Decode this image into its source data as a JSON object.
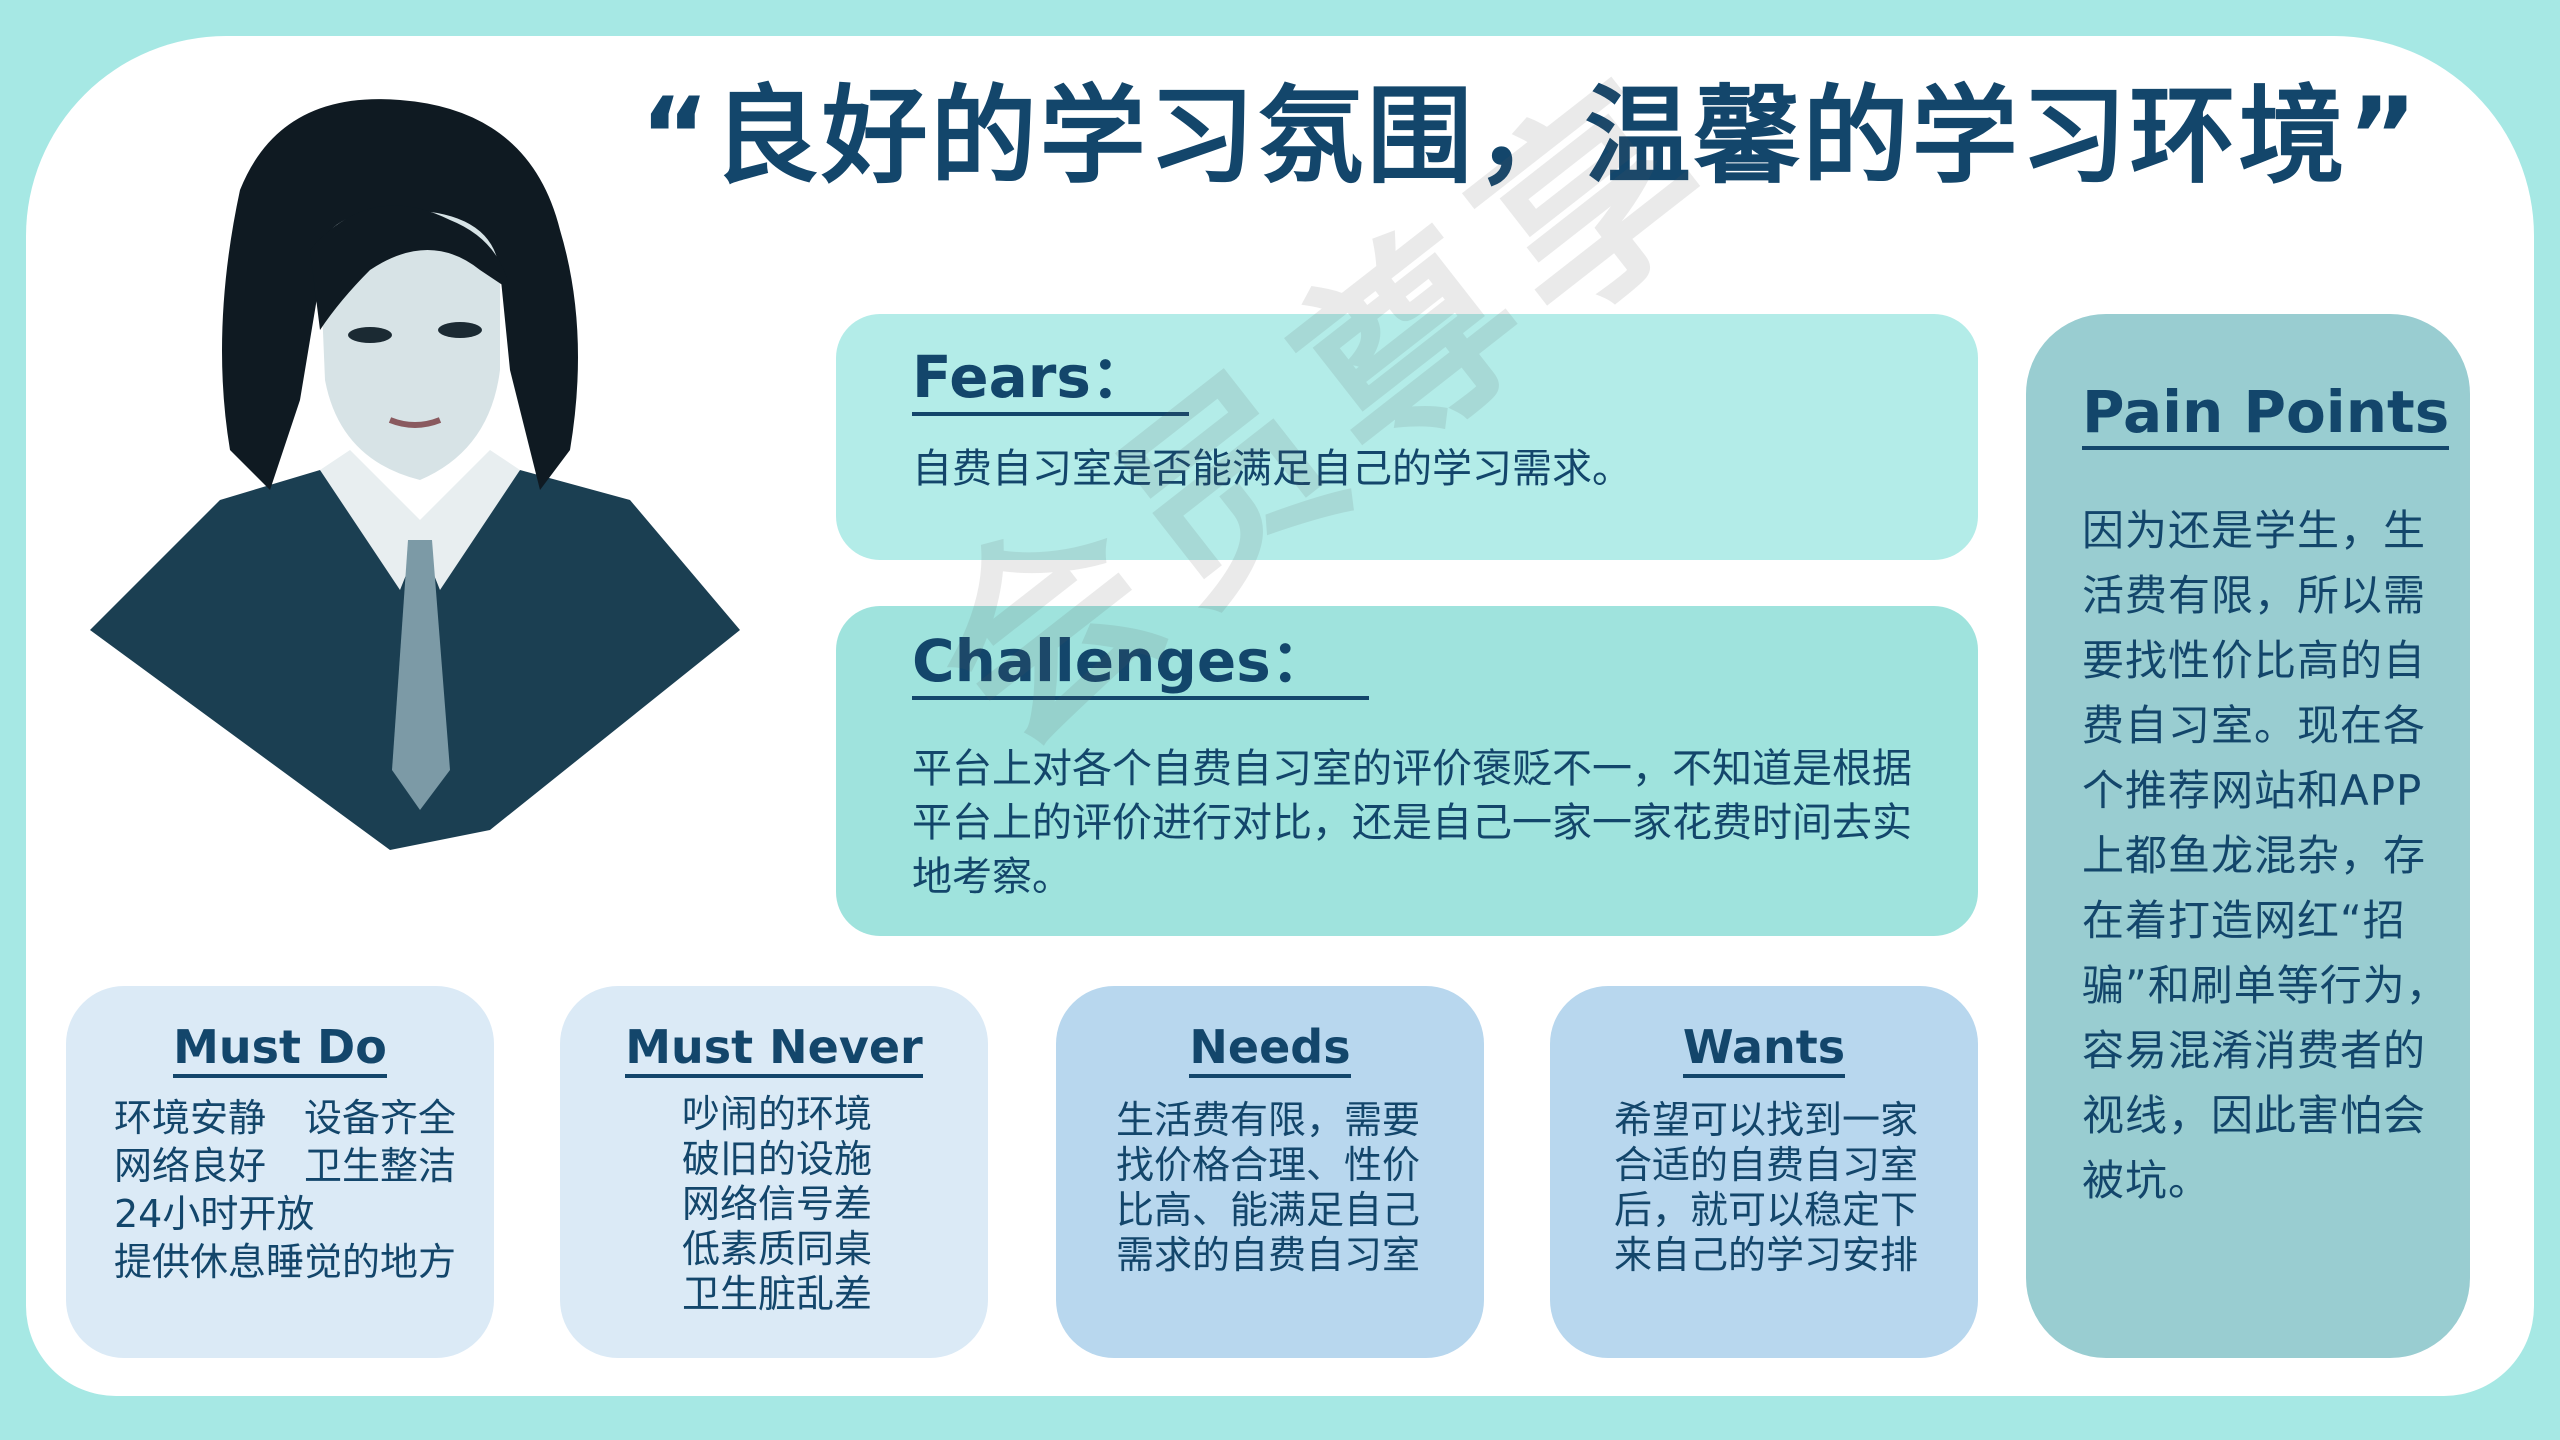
{
  "title": "“良好的学习氛围，温馨的学习环境”",
  "fears": {
    "heading": "Fears：",
    "text": "自费自习室是否能满足自己的学习需求。"
  },
  "challenges": {
    "heading": "Challenges：",
    "text": "平台上对各个自费自习室的评价褒贬不一，不知道是根据平台上的评价进行对比，还是自己一家一家花费时间去实地考察。"
  },
  "pain_points": {
    "heading": "Pain Points",
    "text": "因为还是学生，生活费有限，所以需要找性价比高的自费自习室。现在各个推荐网站和APP上都鱼龙混杂，存在着打造网红“招骗”和刷单等行为，容易混淆消费者的视线，因此害怕会被坑。"
  },
  "must_do": {
    "heading": "Must Do",
    "items": [
      "环境安静　设备齐全",
      "网络良好　卫生整洁",
      "24小时开放",
      "提供休息睡觉的地方"
    ]
  },
  "must_never": {
    "heading": "Must Never",
    "items": [
      "吵闹的环境",
      "破旧的设施",
      "网络信号差",
      "低素质同桌",
      "卫生脏乱差"
    ]
  },
  "needs": {
    "heading": "Needs",
    "items": [
      "生活费有限，需要",
      "找价格合理、性价",
      "比高、能满足自己",
      "需求的自费自习室"
    ]
  },
  "wants": {
    "heading": "Wants",
    "items": [
      "希望可以找到一家",
      "合适的自费自习室",
      "后，就可以稳定下",
      "来自己的学习安排"
    ]
  },
  "watermark": "会员尊享",
  "colors": {
    "background": "#a6e8e4",
    "card": "#ffffff",
    "text": "#13466b",
    "fears_panel": "#b3ece8",
    "challenges_panel": "#9fe3dd",
    "pain_panel": "#99cdd1",
    "light_panel": "#dbeaf6",
    "blue_panel": "#b8d7ee"
  }
}
